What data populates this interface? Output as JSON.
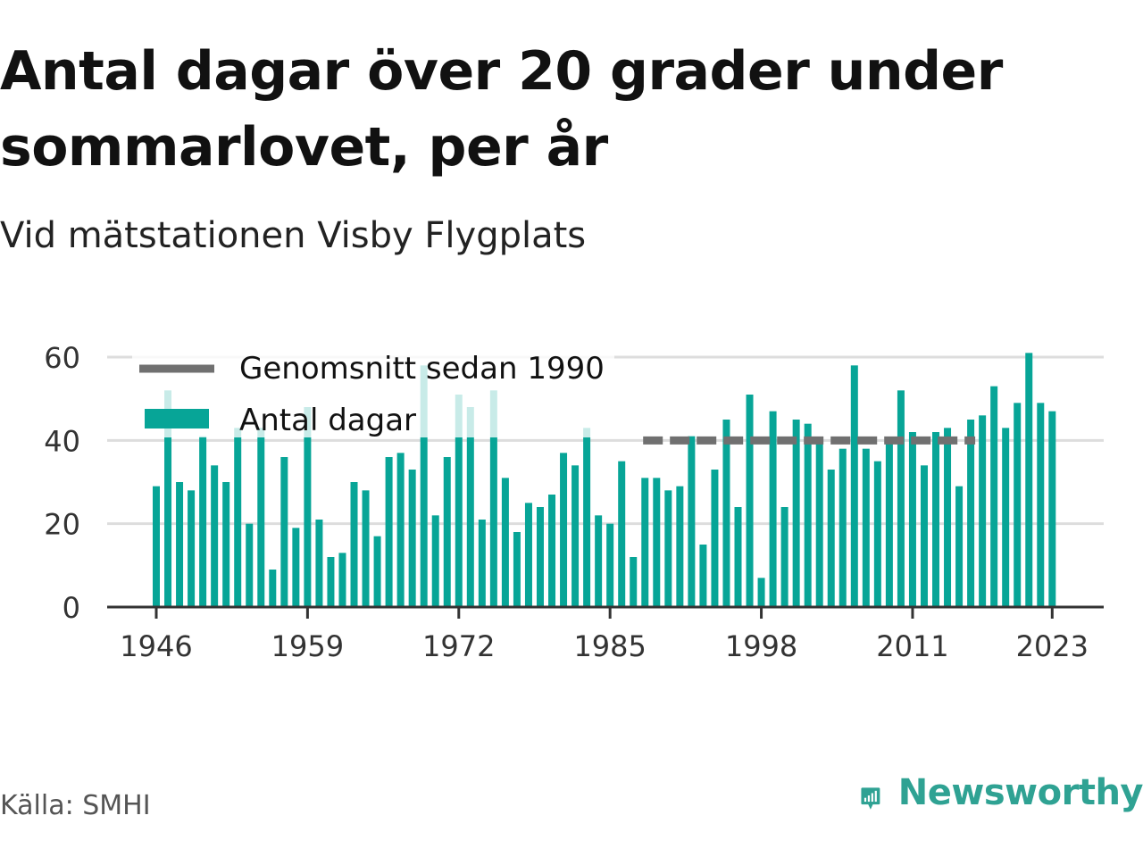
{
  "header": {
    "title": "Antal dagar över 20 grader under sommarlovet, per år",
    "subtitle": "Vid mätstationen Visby Flygplats"
  },
  "footer": {
    "source": "Källa: SMHI",
    "brand": "Newsworthy"
  },
  "colors": {
    "bar": "#07a597",
    "average_line": "#707070",
    "grid": "#dddddd",
    "brand": "#2fa293"
  },
  "chart_data": {
    "type": "bar",
    "x": [
      1946,
      1947,
      1948,
      1949,
      1950,
      1951,
      1952,
      1953,
      1954,
      1955,
      1956,
      1957,
      1958,
      1959,
      1960,
      1961,
      1962,
      1963,
      1964,
      1965,
      1966,
      1967,
      1968,
      1969,
      1970,
      1971,
      1972,
      1973,
      1974,
      1975,
      1976,
      1977,
      1978,
      1979,
      1980,
      1981,
      1982,
      1983,
      1984,
      1985,
      1986,
      1987,
      1988,
      1989,
      1990,
      1991,
      1992,
      1993,
      1994,
      1995,
      1996,
      1997,
      1998,
      1999,
      2000,
      2001,
      2002,
      2003,
      2004,
      2005,
      2006,
      2007,
      2008,
      2009,
      2010,
      2011,
      2012,
      2013,
      2014,
      2015,
      2016,
      2017,
      2018,
      2019,
      2020,
      2021,
      2022,
      2023
    ],
    "series": [
      {
        "name": "Antal dagar",
        "values": [
          29,
          52,
          30,
          28,
          41,
          34,
          30,
          43,
          20,
          43,
          9,
          36,
          19,
          48,
          21,
          12,
          13,
          30,
          28,
          17,
          36,
          37,
          33,
          58,
          22,
          36,
          51,
          48,
          21,
          52,
          31,
          18,
          25,
          24,
          27,
          37,
          34,
          43,
          22,
          20,
          35,
          12,
          31,
          31,
          28,
          29,
          41,
          15,
          33,
          45,
          24,
          51,
          7,
          47,
          24,
          45,
          44,
          40,
          33,
          38,
          58,
          38,
          35,
          40,
          52,
          42,
          34,
          42,
          43,
          29,
          45,
          46,
          53,
          43,
          49,
          61,
          49,
          47
        ]
      },
      {
        "name": "Genomsnitt sedan 1990",
        "from": 1986,
        "to": 2016,
        "value": 40
      }
    ],
    "ylim": [
      0,
      60
    ],
    "yticks": [
      "0",
      "20",
      "40",
      "60"
    ],
    "xticks": [
      "1946",
      "1959",
      "1972",
      "1985",
      "1998",
      "2011",
      "2023"
    ],
    "grid": true,
    "legend_position": "top-left",
    "legend": [
      "Genomsnitt sedan 1990",
      "Antal dagar"
    ]
  }
}
